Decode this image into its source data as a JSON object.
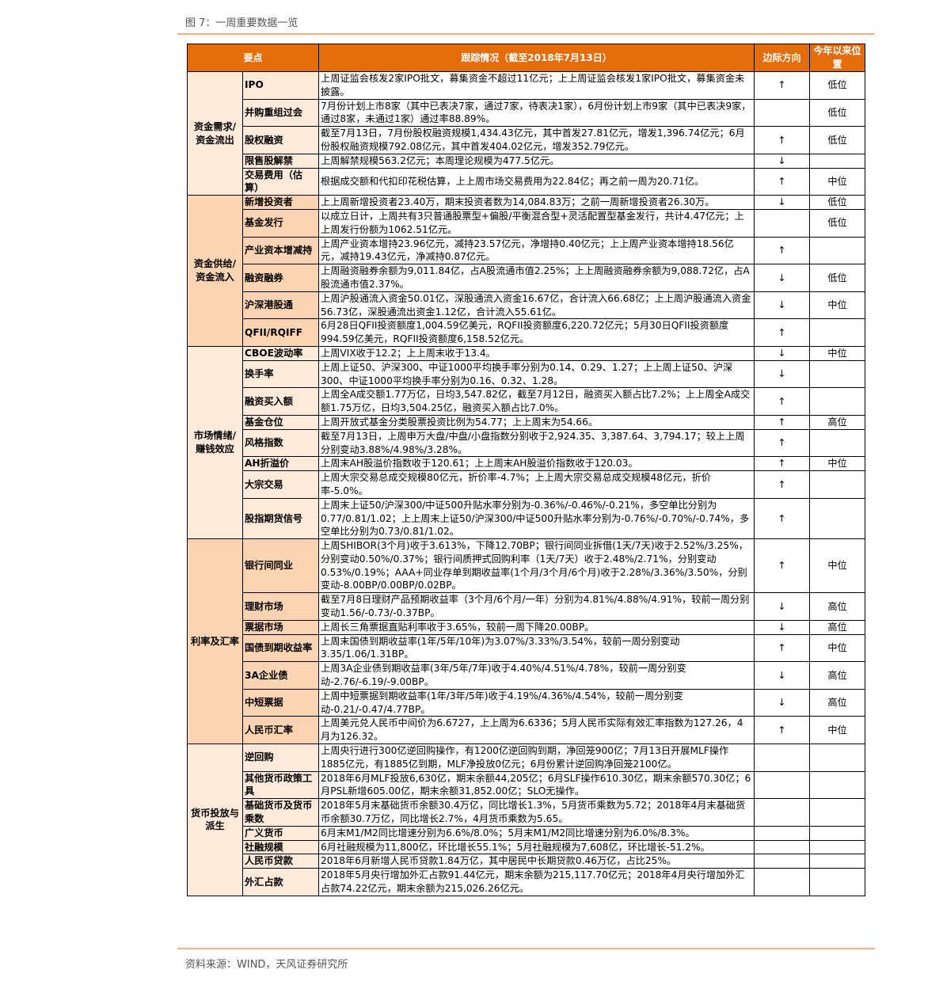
{
  "figure_title": "图 7：一周重要数据一览",
  "source": "资料来源：WIND，天风证券研究所",
  "colors": {
    "header": "#e46c0a",
    "group_light": "#fdeada",
    "group_dark": "#fbd4b4",
    "rule": "#f4b183"
  },
  "header": {
    "key_point": "要点",
    "tracking": "跟踪情况（截至2018年7月13日）",
    "direction": "边际方向",
    "position": "今年以来位置"
  },
  "groups": [
    {
      "name": "资金需求/资金流出",
      "shade": "light",
      "rows": [
        {
          "item": "IPO",
          "text": "上周证监会核发2家IPO批文，募集资金不超过11亿元；上上周证监会核发1家IPO批文，募集资金未披露。",
          "dir": "↑",
          "pos": "低位"
        },
        {
          "item": "并购重组过会",
          "text": "7月份计划上市8家（其中已表决7家，通过7家，待表决1家），6月份计划上市9家（其中已表决9家，通过8家，未通过1家）通过率88.89%。",
          "dir": "",
          "pos": "低位"
        },
        {
          "item": "股权融资",
          "text": "截至7月13日，7月份股权融资规模1,434.43亿元，其中首发27.81亿元，增发1,396.74亿元；6月份股权融资规模792.08亿元，其中首发404.02亿元，增发352.79亿元。",
          "dir": "↑",
          "pos": "低位"
        },
        {
          "item": "限售股解禁",
          "text": "上周解禁规模563.2亿元；本周理论规模为477.5亿元。",
          "dir": "↓",
          "pos": ""
        },
        {
          "item": "交易费用（估算）",
          "text": "根据成交额和代扣印花税估算，上上周市场交易费用为22.84亿；再之前一周为20.71亿。",
          "dir": "↑",
          "pos": "中位"
        }
      ]
    },
    {
      "name": "资金供给/资金流入",
      "shade": "dark",
      "rows": [
        {
          "item": "新增投资者",
          "text": "上上周新增投资者23.40万，期末投资者数为14,084.83万；之前一周新增投资者26.30万。",
          "dir": "↓",
          "pos": "低位"
        },
        {
          "item": "基金发行",
          "text": "以成立日计，上周共有3只普通股票型+偏股/平衡混合型+灵活配置型基金发行，共计4.47亿元；上上周发行份额为1062.51亿元。",
          "dir": "",
          "pos": "低位"
        },
        {
          "item": "产业资本增减持",
          "text": "上周产业资本增持23.96亿元，减持23.57亿元，净增持0.40亿元；上上周产业资本增持18.56亿元，减持19.43亿元，净减持0.87亿元。",
          "dir": "↑",
          "pos": ""
        },
        {
          "item": "融资融券",
          "text": "上周融资融券余额为9,011.84亿，占A股流通市值2.25%；上上周融资融券余额为9,088.72亿，占A股流通市值2.37%。",
          "dir": "↓",
          "pos": "低位"
        },
        {
          "item": "沪深港股通",
          "text": "上周沪股通流入资金50.01亿，深股通流入资金16.67亿，合计流入66.68亿；上上周沪股通流入资金56.73亿，深股通流出资金1.12亿，合计流入55.61亿。",
          "dir": "↓",
          "pos": "中位"
        },
        {
          "item": "QFII/RQIFF",
          "text": "6月28日QFII投资额度1,004.59亿美元，RQFII投资额度6,220.72亿元；5月30日QFII投资额度994.59亿美元，RQFII投资额度6,158.52亿元。",
          "dir": "↑",
          "pos": ""
        }
      ]
    },
    {
      "name": "市场情绪/赚钱效应",
      "shade": "light",
      "rows": [
        {
          "item": "CBOE波动率",
          "text": "上周VIX收于12.2；上上周末收于13.4。",
          "dir": "↓",
          "pos": "中位"
        },
        {
          "item": "换手率",
          "text": "上周上证50、沪深300、中证1000平均换手率分别为0.14、0.29、1.27；上上周上证50、沪深300、中证1000平均换手率分别为0.16、0.32、1.28。",
          "dir": "↓",
          "pos": ""
        },
        {
          "item": "融资买入额",
          "text": "上周全A成交额1.77万亿，日均3,547.82亿，截至7月12日，融资买入额占比7.2%；上上周全A成交额1.75万亿，日均3,504.25亿，融资买入额占比7.0%。",
          "dir": "↑",
          "pos": ""
        },
        {
          "item": "基金仓位",
          "text": "上周开放式基金分类股票投资比例为54.77；上上周末为54.66。",
          "dir": "↑",
          "pos": "高位"
        },
        {
          "item": "风格指数",
          "text": "截至7月13日，上周申万大盘/中盘/小盘指数分别收于2,924.35、3,387.64、3,794.17；较上上周分别变动3.88%/4.98%/3.28%。",
          "dir": "↑",
          "pos": ""
        },
        {
          "item": "AH折溢价",
          "text": "上周末AH股溢价指数收于120.61；上上周末AH股溢价指数收于120.03。",
          "dir": "↑",
          "pos": "中位"
        },
        {
          "item": "大宗交易",
          "text": "上周大宗交易总成交规模80亿元，折价率-4.7%；上上周大宗交易总成交规模48亿元，折价率-5.0%。",
          "dir": "↑",
          "pos": ""
        },
        {
          "item": "股指期货信号",
          "text": "上周末上证50/沪深300/中证500升贴水率分别为-0.36%/-0.46%/-0.21%，多空单比分别为0.77/0.81/1.02；上上周末上证50/沪深300/中证500升贴水率分别为-0.76%/-0.70%/-0.74%，多空单比分别为0.73/0.81/1.02。",
          "dir": "↑",
          "pos": ""
        }
      ]
    },
    {
      "name": "利率及汇率",
      "shade": "dark",
      "rows": [
        {
          "item": "银行间同业",
          "text": "上周SHIBOR(3个月)收于3.613%，下降12.70BP；银行间同业拆借(1天/7天)收于2.52%/3.25%，分别变动0.50%/0.37%；银行间质押式回购利率（1天/7天）收于2.48%/2.71%，分别变动0.53%/0.19%；AAA+同业存单到期收益率(1个月/3个月/6个月)收于2.28%/3.36%/3.50%，分别变动-8.00BP/0.00BP/0.02BP。",
          "dir": "↑",
          "pos": "中位"
        },
        {
          "item": "理财市场",
          "text": "截至7月8日理财产品预期收益率（3个月/6个月/一年）分别为4.81%/4.88%/4.91%，较前一周分别变动1.56/-0.73/-0.37BP。",
          "dir": "↓",
          "pos": "高位"
        },
        {
          "item": "票据市场",
          "text": "上周长三角票据直贴利率收于3.65%，较前一周下降20.00BP。",
          "dir": "↓",
          "pos": "高位"
        },
        {
          "item": "国债到期收益率",
          "text": "上周末国债到期收益率(1年/5年/10年)为3.07%/3.33%/3.54%，较前一周分别变动3.35/1.06/1.31BP。",
          "dir": "↑",
          "pos": "中位"
        },
        {
          "item": "3A企业债",
          "text": "上周3A企业债到期收益率(3年/5年/7年)收于4.40%/4.51%/4.78%，较前一周分别变动-2.76/-6.19/-9.00BP。",
          "dir": "↓",
          "pos": "高位"
        },
        {
          "item": "中短票据",
          "text": "上周中短票据到期收益率(1年/3年/5年)收于4.19%/4.36%/4.54%，较前一周分别变动-0.21/-0.47/4.77BP。",
          "dir": "↓",
          "pos": "高位"
        },
        {
          "item": "人民币汇率",
          "text": "上周美元兑人民币中间价为6.6727，上上周为6.6336；5月人民币实际有效汇率指数为127.26，4月为126.32。",
          "dir": "↑",
          "pos": "中位"
        }
      ]
    },
    {
      "name": "货币投放与派生",
      "shade": "light",
      "rows": [
        {
          "item": "逆回购",
          "text": "上周央行进行300亿逆回购操作，有1200亿逆回购到期，净回笼900亿；7月13日开展MLF操作1885亿元，有1885亿到期，MLF净投放0亿元；6月份累计逆回购净回笼2100亿。",
          "dir": "",
          "pos": ""
        },
        {
          "item": "其他货币政策工具",
          "text": "2018年6月MLF投放6,630亿，期末余额44,205亿；6月SLF操作610.30亿，期末余额570.30亿；6月PSL新增605.00亿，期末余额31,852.00亿；SLO无操作。",
          "dir": "",
          "pos": ""
        },
        {
          "item": "基础货币及货币乘数",
          "text": "2018年5月末基础货币余额30.4万亿，同比增长1.3%，5月货币乘数为5.72；2018年4月末基础货币余额30.7万亿，同比增长2.7%，4月货币乘数为5.65。",
          "dir": "",
          "pos": ""
        },
        {
          "item": "广义货币",
          "text": "6月末M1/M2同比增速分别为6.6%/8.0%；5月末M1/M2同比增速分别为6.0%/8.3%。",
          "dir": "",
          "pos": ""
        },
        {
          "item": "社融规模",
          "text": "6月社融规模为11,800亿，环比增长55.1%；5月社融规模为7,608亿，环比增长-51.2%。",
          "dir": "",
          "pos": ""
        },
        {
          "item": "人民币贷款",
          "text": "2018年6月新增人民币贷款1.84万亿，其中居民中长期贷款0.46万亿，占比25%。",
          "dir": "",
          "pos": ""
        },
        {
          "item": "外汇占款",
          "text": "2018年5月央行增加外汇占款91.44亿元，期末余额为215,117.70亿元；2018年4月央行增加外汇占款74.22亿元，期末余额为215,026.26亿元。",
          "dir": "",
          "pos": ""
        }
      ]
    }
  ]
}
